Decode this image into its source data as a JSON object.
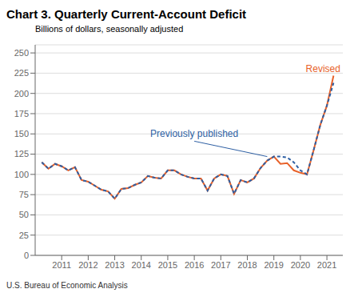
{
  "chart_data": {
    "type": "line",
    "title": "Chart 3. Quarterly Current-Account Deficit",
    "subtitle": "Billions of dollars, seasonally adjusted",
    "footnote": "U.S. Bureau of Economic Analysis",
    "x": [
      2010.25,
      2010.5,
      2010.75,
      2011.0,
      2011.25,
      2011.5,
      2011.75,
      2012.0,
      2012.25,
      2012.5,
      2012.75,
      2013.0,
      2013.25,
      2013.5,
      2013.75,
      2014.0,
      2014.25,
      2014.5,
      2014.75,
      2015.0,
      2015.25,
      2015.5,
      2015.75,
      2016.0,
      2016.25,
      2016.5,
      2016.75,
      2017.0,
      2017.25,
      2017.5,
      2017.75,
      2018.0,
      2018.25,
      2018.5,
      2018.75,
      2019.0,
      2019.25,
      2019.5,
      2019.75,
      2020.0,
      2020.25,
      2020.5,
      2020.75,
      2021.0,
      2021.25
    ],
    "series": [
      {
        "name": "Revised",
        "color": "#e8622a",
        "line_style": "solid",
        "values": [
          115,
          107,
          113,
          110,
          105,
          109,
          93,
          91,
          86,
          81,
          79,
          70,
          82,
          83,
          87,
          90,
          98,
          96,
          95,
          105,
          105,
          100,
          97,
          95,
          95,
          80,
          95,
          100,
          98,
          76,
          93,
          90,
          95,
          108,
          117,
          122,
          113,
          114,
          105,
          102,
          100,
          130,
          161,
          185,
          222
        ]
      },
      {
        "name": "Previously published",
        "color": "#2e5fa3",
        "line_style": "dashed",
        "values": [
          115,
          107,
          113,
          110,
          105,
          109,
          93,
          91,
          86,
          81,
          79,
          70,
          82,
          83,
          87,
          90,
          98,
          96,
          95,
          105,
          105,
          100,
          97,
          95,
          95,
          80,
          95,
          100,
          98,
          76,
          93,
          90,
          95,
          108,
          117,
          122,
          122,
          121,
          115,
          105,
          100,
          130,
          161,
          185,
          213
        ]
      }
    ],
    "xlim": [
      2010.0,
      2021.6
    ],
    "xticks": [
      2011,
      2012,
      2013,
      2014,
      2015,
      2016,
      2017,
      2018,
      2019,
      2020,
      2021
    ],
    "ylim": [
      0,
      260
    ],
    "yticks": [
      0,
      25,
      50,
      75,
      100,
      125,
      150,
      175,
      200,
      225,
      250
    ],
    "grid": true,
    "annotations": [
      {
        "text": "Revised",
        "x": 2020.05,
        "y": 231,
        "color": "#e8622a"
      },
      {
        "text": "Previously published",
        "x": 2016.0,
        "y": 141,
        "color": "#2e5fa3",
        "target_x": 2018.75,
        "target_y": 122
      }
    ]
  }
}
